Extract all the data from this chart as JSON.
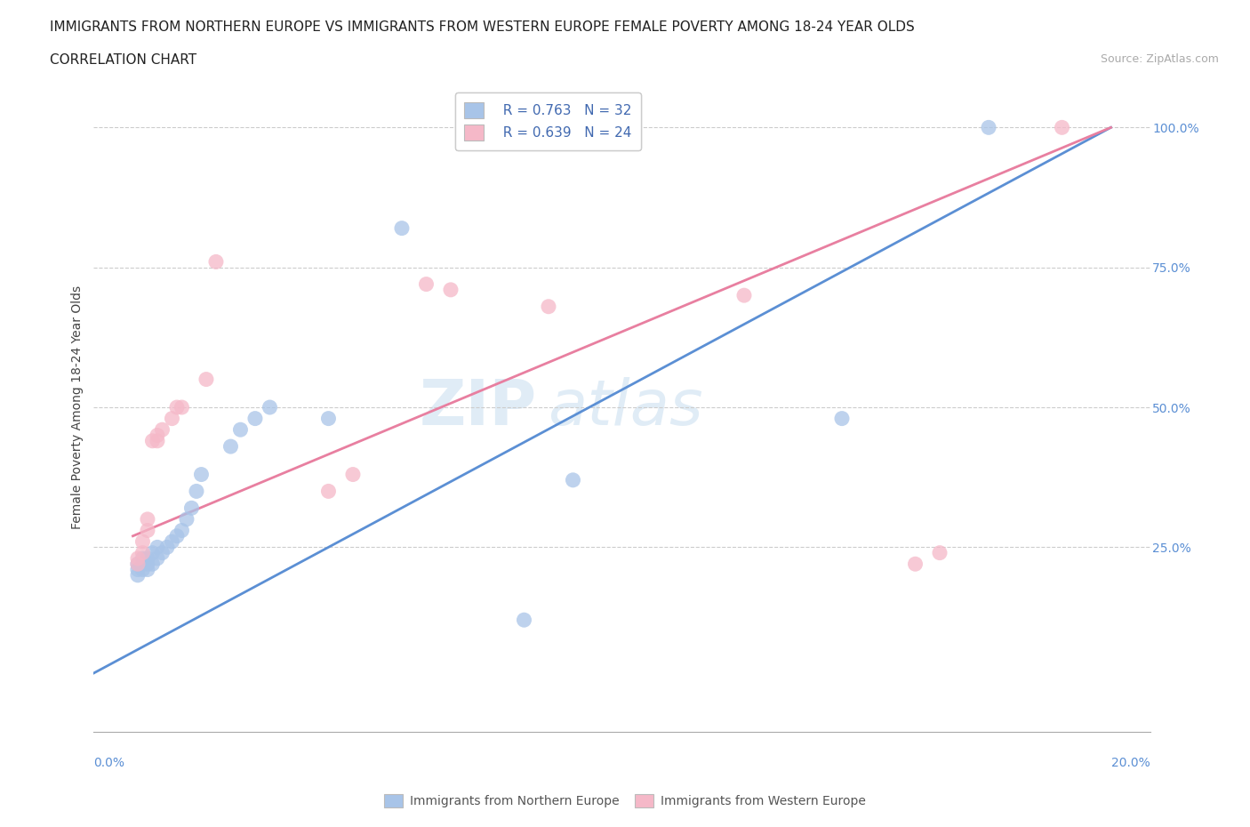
{
  "title_line1": "IMMIGRANTS FROM NORTHERN EUROPE VS IMMIGRANTS FROM WESTERN EUROPE FEMALE POVERTY AMONG 18-24 YEAR OLDS",
  "title_line2": "CORRELATION CHART",
  "source_text": "Source: ZipAtlas.com",
  "ylabel": "Female Poverty Among 18-24 Year Olds",
  "watermark_line1": "ZIP",
  "watermark_line2": "atlas",
  "blue_R": 0.763,
  "blue_N": 32,
  "pink_R": 0.639,
  "pink_N": 24,
  "blue_color": "#a8c4e8",
  "pink_color": "#f5b8c8",
  "blue_line_color": "#5b8fd4",
  "pink_line_color": "#e87fa0",
  "legend_text_color": "#4169b0",
  "tick_color": "#5b8fd4",
  "blue_scatter_x": [
    0.001,
    0.001,
    0.001,
    0.002,
    0.002,
    0.002,
    0.003,
    0.003,
    0.003,
    0.004,
    0.004,
    0.005,
    0.005,
    0.006,
    0.007,
    0.008,
    0.009,
    0.01,
    0.011,
    0.012,
    0.013,
    0.014,
    0.02,
    0.022,
    0.025,
    0.028,
    0.04,
    0.055,
    0.08,
    0.09,
    0.145,
    0.175
  ],
  "blue_scatter_y": [
    0.21,
    0.22,
    0.2,
    0.22,
    0.21,
    0.23,
    0.22,
    0.21,
    0.23,
    0.22,
    0.24,
    0.23,
    0.25,
    0.24,
    0.25,
    0.26,
    0.27,
    0.28,
    0.3,
    0.32,
    0.35,
    0.38,
    0.43,
    0.46,
    0.48,
    0.5,
    0.48,
    0.82,
    0.12,
    0.37,
    0.48,
    1.0
  ],
  "pink_scatter_x": [
    0.001,
    0.001,
    0.002,
    0.002,
    0.003,
    0.003,
    0.004,
    0.005,
    0.005,
    0.006,
    0.008,
    0.009,
    0.01,
    0.015,
    0.017,
    0.04,
    0.045,
    0.06,
    0.065,
    0.085,
    0.125,
    0.16,
    0.165,
    0.19
  ],
  "pink_scatter_y": [
    0.22,
    0.23,
    0.24,
    0.26,
    0.28,
    0.3,
    0.44,
    0.44,
    0.45,
    0.46,
    0.48,
    0.5,
    0.5,
    0.55,
    0.76,
    0.35,
    0.38,
    0.72,
    0.71,
    0.68,
    0.7,
    0.22,
    0.24,
    1.0
  ],
  "blue_line_x": [
    -0.008,
    0.2
  ],
  "blue_line_y": [
    0.025,
    1.0
  ],
  "pink_line_x": [
    0.0,
    0.2
  ],
  "pink_line_y": [
    0.27,
    1.0
  ],
  "xlim": [
    -0.008,
    0.208
  ],
  "ylim": [
    -0.08,
    1.08
  ],
  "ytick_vals": [
    0.0,
    0.25,
    0.5,
    0.75,
    1.0
  ],
  "ytick_labels": [
    "",
    "25.0%",
    "50.0%",
    "75.0%",
    "100.0%"
  ],
  "legend1_label": "Immigrants from Northern Europe",
  "legend2_label": "Immigrants from Western Europe",
  "title_fontsize": 11,
  "subtitle_fontsize": 11,
  "source_fontsize": 9,
  "axis_label_fontsize": 10,
  "tick_fontsize": 10,
  "legend_fontsize": 11
}
